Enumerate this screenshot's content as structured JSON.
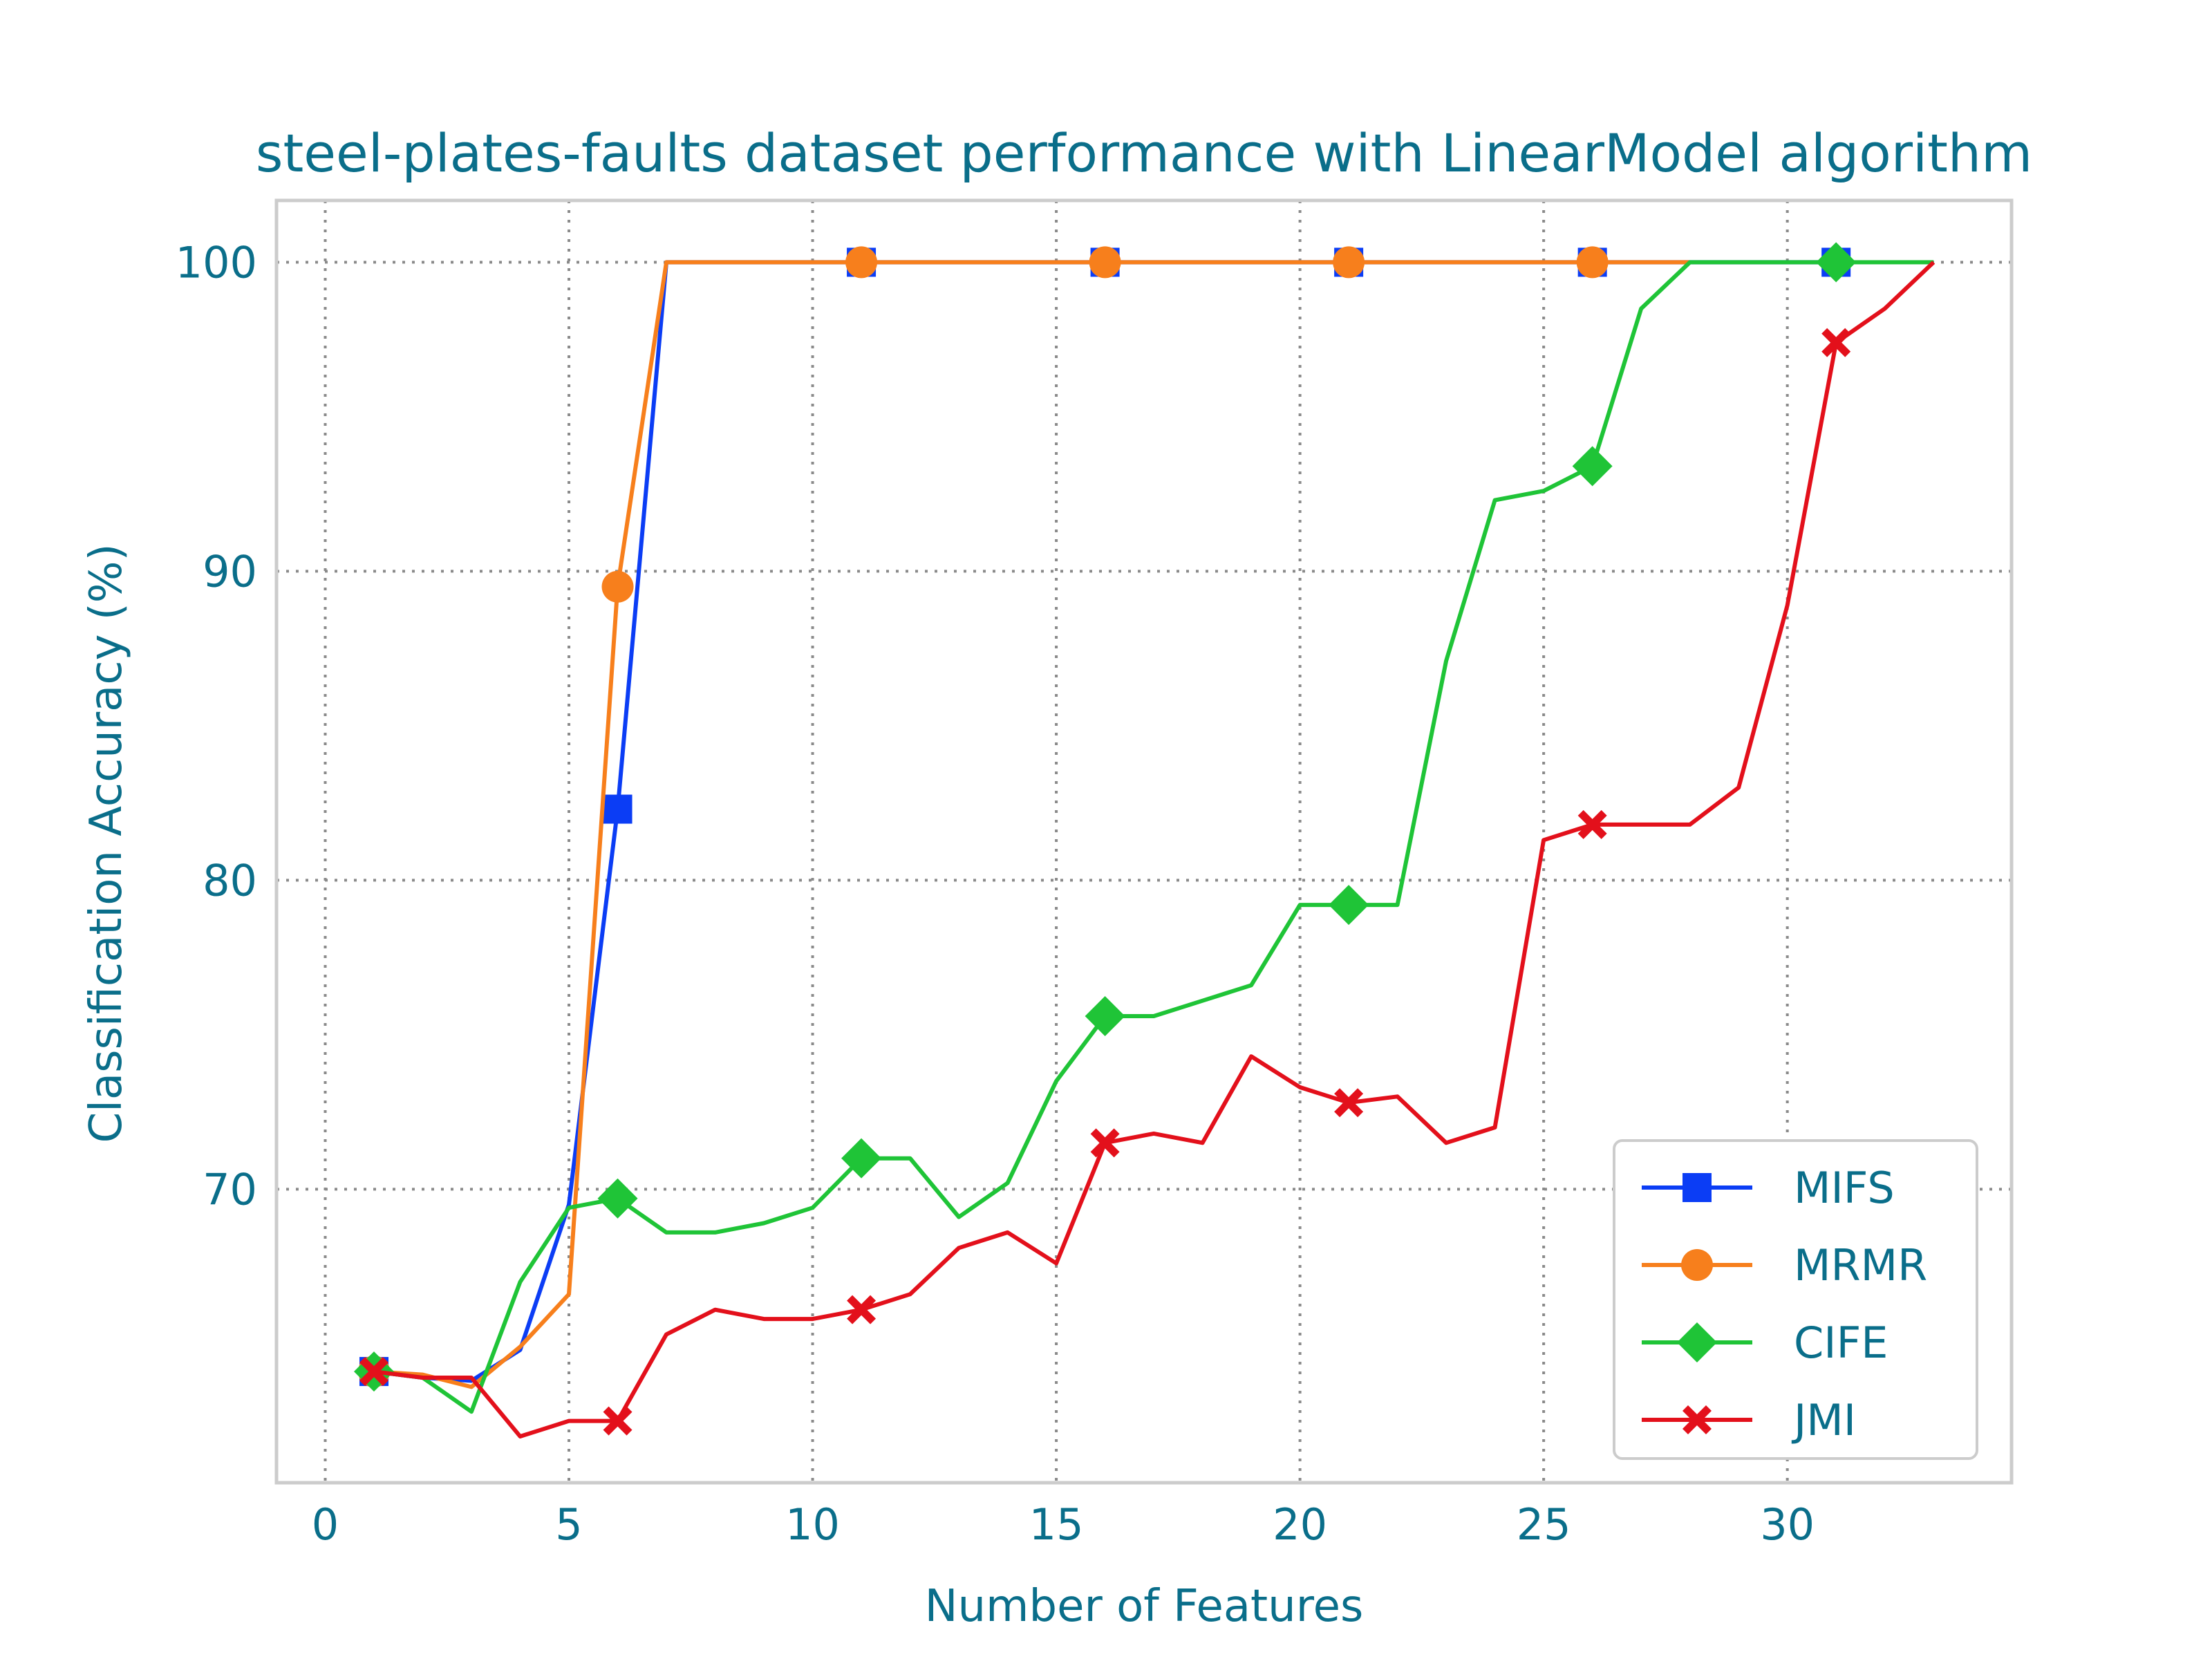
{
  "chart_data": {
    "type": "line",
    "title": "steel-plates-faults dataset performance with LinearModel algorithm",
    "xlabel": "Number of Features",
    "ylabel": "Classification Accuracy (%)",
    "xlim": [
      -1,
      34.6
    ],
    "ylim": [
      60.5,
      102
    ],
    "xticks": [
      0,
      5,
      10,
      15,
      20,
      25,
      30
    ],
    "yticks": [
      70,
      80,
      90,
      100
    ],
    "grid": true,
    "legend_position": "lower-right",
    "series": [
      {
        "name": "MIFS",
        "color": "#0b3df5",
        "marker": "square",
        "marker_every": 5,
        "x": [
          1,
          2,
          3,
          4,
          5,
          6,
          7,
          8,
          9,
          10,
          11,
          12,
          13,
          14,
          15,
          16,
          17,
          18,
          19,
          20,
          21,
          22,
          23,
          24,
          25,
          26,
          27,
          28,
          29,
          30,
          31
        ],
        "y": [
          64.1,
          63.9,
          63.8,
          64.8,
          69.5,
          82.3,
          100,
          100,
          100,
          100,
          100,
          100,
          100,
          100,
          100,
          100,
          100,
          100,
          100,
          100,
          100,
          100,
          100,
          100,
          100,
          100,
          100,
          100,
          100,
          100,
          100
        ]
      },
      {
        "name": "MRMR",
        "color": "#f77f1c",
        "marker": "circle",
        "marker_every": 5,
        "x": [
          1,
          2,
          3,
          4,
          5,
          6,
          7,
          8,
          9,
          10,
          11,
          12,
          13,
          14,
          15,
          16,
          17,
          18,
          19,
          20,
          21,
          22,
          23,
          24,
          25,
          26,
          27,
          28
        ],
        "y": [
          64.1,
          64.0,
          63.6,
          64.9,
          66.6,
          89.5,
          100,
          100,
          100,
          100,
          100,
          100,
          100,
          100,
          100,
          100,
          100,
          100,
          100,
          100,
          100,
          100,
          100,
          100,
          100,
          100,
          100,
          100
        ]
      },
      {
        "name": "CIFE",
        "color": "#1fc437",
        "marker": "diamond",
        "marker_every": 5,
        "x": [
          1,
          2,
          3,
          4,
          5,
          6,
          7,
          8,
          9,
          10,
          11,
          12,
          13,
          14,
          15,
          16,
          17,
          18,
          19,
          20,
          21,
          22,
          23,
          24,
          25,
          26,
          27,
          28,
          29,
          30,
          31,
          32,
          33
        ],
        "y": [
          64.1,
          63.9,
          62.8,
          67.0,
          69.4,
          69.7,
          68.6,
          68.6,
          68.9,
          69.4,
          71.0,
          71.0,
          69.1,
          70.2,
          73.5,
          75.6,
          75.6,
          76.1,
          76.6,
          79.2,
          79.2,
          79.2,
          87.1,
          92.3,
          92.6,
          93.4,
          98.5,
          100,
          100,
          100,
          100,
          100,
          100
        ]
      },
      {
        "name": "JMI",
        "color": "#e3101b",
        "marker": "x",
        "marker_every": 5,
        "x": [
          1,
          2,
          3,
          4,
          5,
          6,
          7,
          8,
          9,
          10,
          11,
          12,
          13,
          14,
          15,
          16,
          17,
          18,
          19,
          20,
          21,
          22,
          23,
          24,
          25,
          26,
          27,
          28,
          29,
          30,
          31,
          32,
          33
        ],
        "y": [
          64.1,
          63.9,
          63.9,
          62.0,
          62.5,
          62.5,
          65.3,
          66.1,
          65.8,
          65.8,
          66.1,
          66.6,
          68.1,
          68.6,
          67.6,
          71.5,
          71.8,
          71.5,
          74.3,
          73.3,
          72.8,
          73.0,
          71.5,
          72.0,
          81.3,
          81.8,
          81.8,
          81.8,
          83.0,
          88.9,
          97.4,
          98.5,
          100
        ]
      }
    ]
  }
}
